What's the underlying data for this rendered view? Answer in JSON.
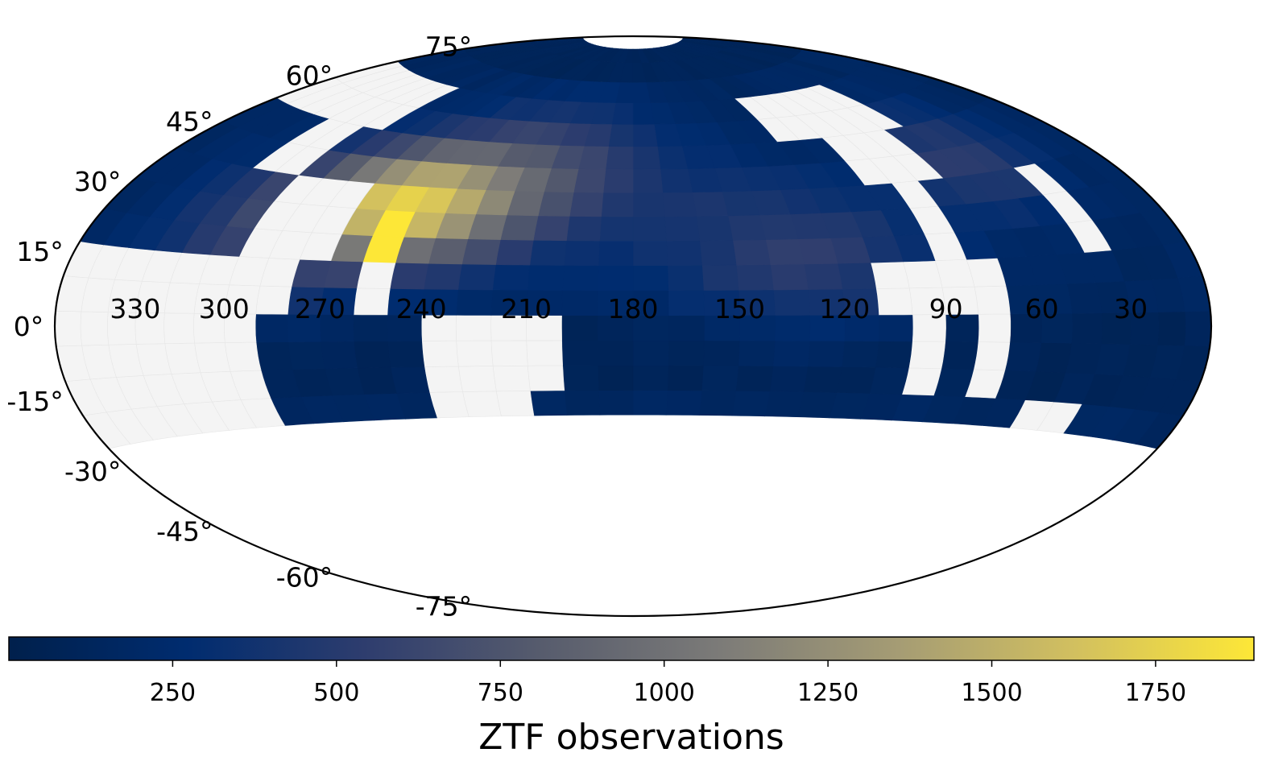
{
  "chart_data": {
    "type": "heatmap",
    "projection": "hammer",
    "grid": false,
    "longitude_ticks": [
      "330",
      "300",
      "270",
      "240",
      "210",
      "180",
      "150",
      "120",
      "90",
      "60",
      "30"
    ],
    "latitude_ticks": [
      "75°",
      "60°",
      "45°",
      "30°",
      "15°",
      "0°",
      "-15°",
      "-30°",
      "-45°",
      "-60°",
      "-75°"
    ],
    "colorbar": {
      "label": "ZTF observations",
      "min": 0,
      "max": 1900,
      "ticks": [
        "250",
        "500",
        "750",
        "1000",
        "1250",
        "1500",
        "1750"
      ],
      "colormap": "cividis",
      "colors": [
        "#00204c",
        "#002c6f",
        "#2e3d6e",
        "#575c6d",
        "#7c7b78",
        "#a59c74",
        "#d2c05f",
        "#fde737"
      ]
    },
    "unobserved_color": "#f4f4f4",
    "dec_range": [
      -25,
      85
    ],
    "coverage_note_ranges": [
      {
        "dec": [
          -25,
          -17
        ],
        "observed_ra": [
          [
            0,
            45
          ],
          [
            60,
            100
          ],
          [
            105,
            215
          ],
          [
            245,
            290
          ]
        ]
      },
      {
        "dec": [
          -17,
          0
        ],
        "observed_ra": [
          [
            0,
            70
          ],
          [
            80,
            95
          ],
          [
            105,
            205
          ],
          [
            245,
            290
          ]
        ]
      },
      {
        "dec": [
          0,
          17
        ],
        "observed_ra": [
          [
            0,
            75
          ],
          [
            110,
            255
          ],
          [
            265,
            285
          ]
        ]
      },
      {
        "dec": [
          17,
          35
        ],
        "observed_ra": [
          [
            0,
            30
          ],
          [
            45,
            82
          ],
          [
            95,
            275
          ],
          [
            305,
            360
          ]
        ]
      },
      {
        "dec": [
          35,
          50
        ],
        "observed_ra": [
          [
            0,
            72
          ],
          [
            100,
            300
          ],
          [
            320,
            360
          ]
        ]
      },
      {
        "dec": [
          50,
          65
        ],
        "observed_ra": [
          [
            0,
            62
          ],
          [
            118,
            295
          ]
        ]
      },
      {
        "dec": [
          65,
          85
        ],
        "observed_ra": [
          [
            0,
            360
          ]
        ]
      }
    ]
  }
}
